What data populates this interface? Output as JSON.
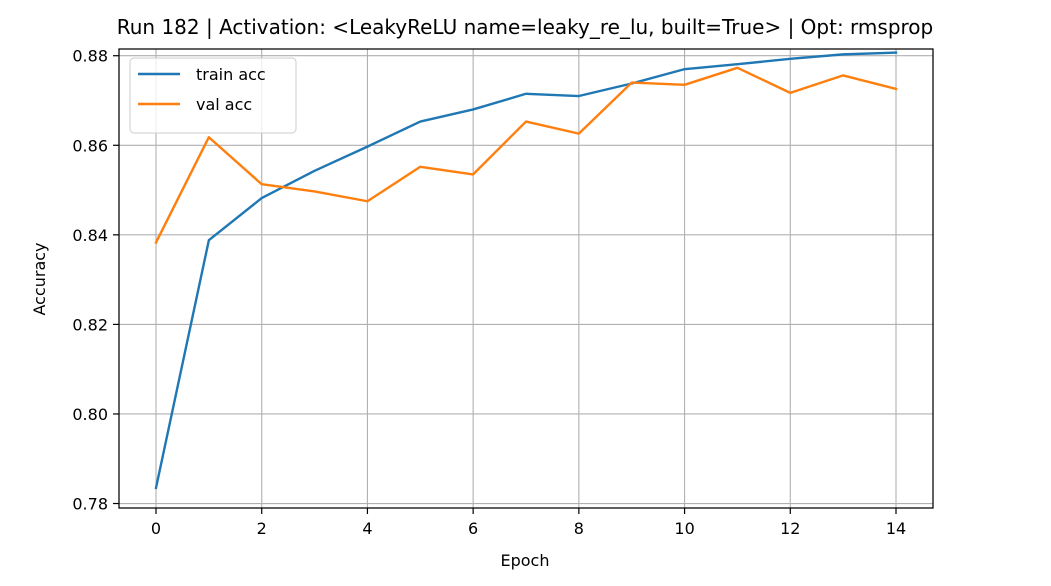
{
  "chart_data": {
    "type": "line",
    "title": "Run 182 | Activation: <LeakyReLU name=leaky_re_lu, built=True> | Opt: rmsprop",
    "xlabel": "Epoch",
    "ylabel": "Accuracy",
    "x": [
      0,
      1,
      2,
      3,
      4,
      5,
      6,
      7,
      8,
      9,
      10,
      11,
      12,
      13,
      14
    ],
    "xlim": [
      -0.7,
      14.7
    ],
    "ylim": [
      0.779,
      0.8815
    ],
    "xticks": [
      0,
      2,
      4,
      6,
      8,
      10,
      12,
      14
    ],
    "xtick_labels": [
      "0",
      "2",
      "4",
      "6",
      "8",
      "10",
      "12",
      "14"
    ],
    "yticks": [
      0.78,
      0.8,
      0.82,
      0.84,
      0.86,
      0.88
    ],
    "ytick_labels": [
      "0.78",
      "0.80",
      "0.82",
      "0.84",
      "0.86",
      "0.88"
    ],
    "grid": true,
    "legend_position": "top-left",
    "series": [
      {
        "name": "train acc",
        "color": "#1f77b4",
        "values": [
          0.7835,
          0.8388,
          0.8482,
          0.8543,
          0.8597,
          0.8653,
          0.868,
          0.8715,
          0.871,
          0.8738,
          0.877,
          0.8781,
          0.8793,
          0.8803,
          0.8807
        ]
      },
      {
        "name": "val acc",
        "color": "#ff7f0e",
        "values": [
          0.8383,
          0.8618,
          0.8513,
          0.8497,
          0.8475,
          0.8552,
          0.8535,
          0.8653,
          0.8626,
          0.874,
          0.8735,
          0.8773,
          0.8717,
          0.8756,
          0.8726
        ]
      }
    ]
  }
}
